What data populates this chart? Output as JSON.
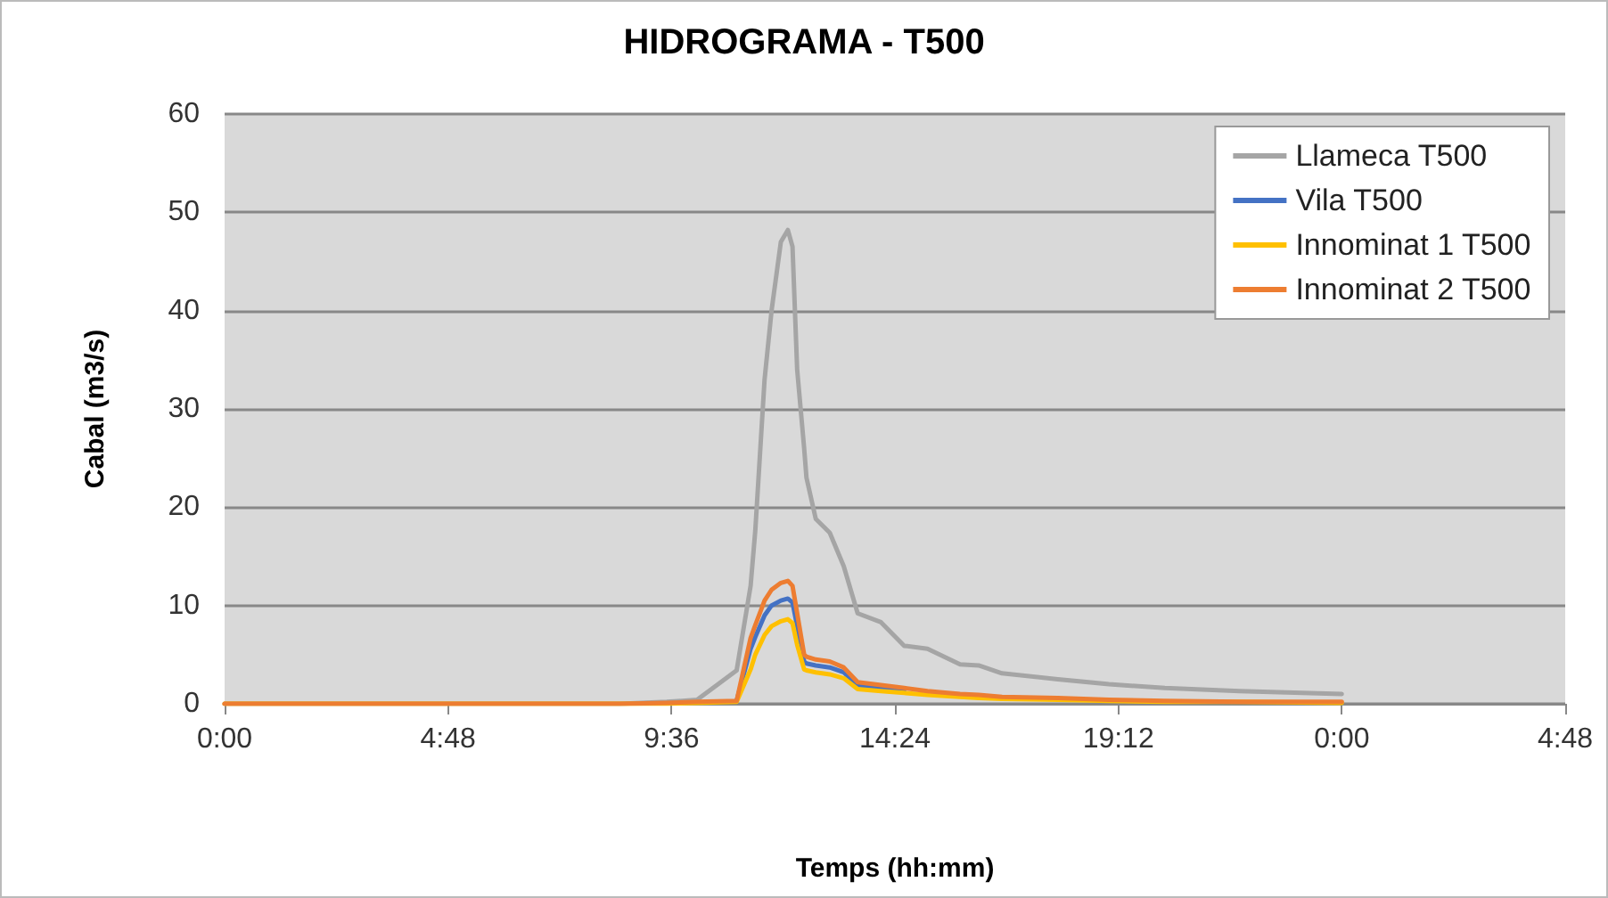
{
  "chart_data": {
    "type": "line",
    "title": "HIDROGRAMA - T500",
    "xlabel": "Temps (hh:mm)",
    "ylabel": "Cabal (m3/s)",
    "x": [
      "2000-01-01T00:00",
      "2000-01-01T08:30",
      "2000-01-01T09:30",
      "2000-01-01T10:09",
      "2000-01-01T11:00",
      "2000-01-01T11:18",
      "2000-01-01T11:24",
      "2000-01-01T11:36",
      "2000-01-01T11:45",
      "2000-01-01T11:57",
      "2000-01-01T12:06",
      "2000-01-01T12:12",
      "2000-01-01T12:18",
      "2000-01-01T12:27",
      "2000-01-01T12:30",
      "2000-01-01T12:42",
      "2000-01-01T13:00",
      "2000-01-01T13:18",
      "2000-01-01T13:36",
      "2000-01-01T14:06",
      "2000-01-01T14:36",
      "2000-01-01T15:06",
      "2000-01-01T15:48",
      "2000-01-01T16:12",
      "2000-01-01T16:42",
      "2000-01-01T17:54",
      "2000-01-01T19:00",
      "2000-01-01T20:12",
      "2000-01-01T21:48",
      "2000-01-02T00:00"
    ],
    "series": [
      {
        "name": "Llameca T500",
        "color": "#a5a5a5",
        "values": [
          0,
          0,
          0.2,
          0.4,
          3.4,
          12,
          17.6,
          33,
          40,
          47,
          48.2,
          46.5,
          34,
          26,
          23,
          18.8,
          17.4,
          14,
          9.2,
          8.3,
          5.9,
          5.6,
          4.0,
          3.9,
          3.1,
          2.5,
          2.0,
          1.6,
          1.3,
          1.0
        ]
      },
      {
        "name": "Vila T500",
        "color": "#4472c4",
        "values": [
          null,
          null,
          null,
          null,
          0.3,
          5.6,
          6.8,
          9,
          10,
          10.5,
          10.7,
          10.3,
          7.9,
          4.3,
          4.1,
          3.9,
          3.7,
          3.2,
          1.9,
          1.6,
          1.4,
          null,
          null,
          null,
          null,
          null,
          null,
          null,
          null,
          null
        ]
      },
      {
        "name": "Innominat 1 T500",
        "color": "#ffc000",
        "values": [
          0,
          0,
          0,
          0.1,
          0.2,
          3.5,
          5,
          7,
          7.9,
          8.4,
          8.6,
          8.2,
          6,
          3.5,
          3.4,
          3.2,
          3.0,
          2.6,
          1.5,
          1.3,
          1.1,
          0.9,
          0.7,
          0.6,
          0.5,
          0.4,
          0.3,
          0.2,
          0.2,
          0.1
        ]
      },
      {
        "name": "Innominat 2 T500",
        "color": "#ed7d31",
        "values": [
          0,
          0,
          0.1,
          0.2,
          0.3,
          6.7,
          8,
          10.5,
          11.6,
          12.3,
          12.5,
          12,
          9.2,
          5.0,
          4.8,
          4.5,
          4.3,
          3.7,
          2.2,
          1.9,
          1.6,
          1.3,
          1.0,
          0.9,
          0.7,
          0.6,
          0.4,
          0.3,
          0.2,
          0.2
        ]
      }
    ],
    "xlim": [
      "2000-01-01T00:00",
      "2000-01-02T04:48"
    ],
    "xticks": [
      {
        "value": "2000-01-01T00:00",
        "label": "0:00"
      },
      {
        "value": "2000-01-01T04:48",
        "label": "4:48"
      },
      {
        "value": "2000-01-01T09:36",
        "label": "9:36"
      },
      {
        "value": "2000-01-01T14:24",
        "label": "14:24"
      },
      {
        "value": "2000-01-01T19:12",
        "label": "19:12"
      },
      {
        "value": "2000-01-02T00:00",
        "label": "0:00"
      },
      {
        "value": "2000-01-02T04:48",
        "label": "4:48"
      }
    ],
    "ylim": [
      0,
      60
    ],
    "yticks": [
      0,
      10,
      20,
      30,
      40,
      50,
      60
    ],
    "grid": "y",
    "legend": "top right",
    "marker": "none",
    "line_style": "solid"
  }
}
